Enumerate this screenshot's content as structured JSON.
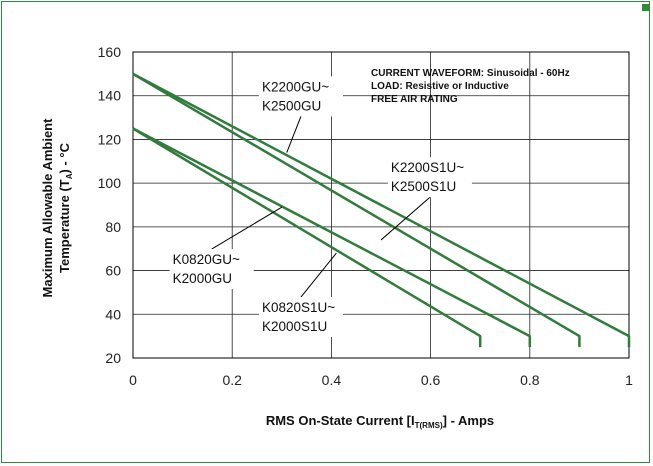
{
  "chart_data": {
    "type": "line",
    "xlabel": {
      "main": "RMS On-State Current [I",
      "sub": "T(RMS)",
      "end": "] - Amps"
    },
    "ylabel": {
      "line1": "Maximum Allowable Ambient",
      "line2_main": "Temperature (T",
      "line2_sub": "A",
      "line2_end": ") - °C"
    },
    "xlim": [
      0,
      1
    ],
    "ylim": [
      20,
      160
    ],
    "x_ticks": [
      "0",
      "0.2",
      "0.4",
      "0.6",
      "0.8",
      "1"
    ],
    "y_ticks": [
      "20",
      "40",
      "60",
      "80",
      "100",
      "120",
      "140",
      "160"
    ],
    "grid": true,
    "line_color": "#2e7d3a",
    "notes": [
      "CURRENT WAVEFORM: Sinusoidal - 60Hz",
      "LOAD: Resistive or Inductive",
      "FREE AIR RATING"
    ],
    "series": [
      {
        "x": [
          0,
          0.7,
          0.7
        ],
        "y": [
          125,
          30,
          25
        ]
      },
      {
        "x": [
          0,
          0.8,
          0.8
        ],
        "y": [
          125,
          30,
          25
        ]
      },
      {
        "x": [
          0,
          0.9,
          0.9
        ],
        "y": [
          150,
          30,
          25
        ]
      },
      {
        "x": [
          0,
          1.0,
          1.0
        ],
        "y": [
          150,
          30,
          25
        ]
      }
    ],
    "annotations": [
      {
        "lines": [
          "K2200GU~",
          "K2500GU"
        ],
        "label_x": 0.26,
        "label_y": 142,
        "point": [
          0.31,
          114
        ]
      },
      {
        "lines": [
          "K2200S1U~",
          "K2500S1U"
        ],
        "label_x": 0.52,
        "label_y": 105,
        "point": [
          0.5,
          74
        ]
      },
      {
        "lines": [
          "K0820GU~",
          "K2000GU"
        ],
        "label_x": 0.08,
        "label_y": 63,
        "point": [
          0.3,
          89
        ]
      },
      {
        "lines": [
          "K0820S1U~",
          "K2000S1U"
        ],
        "label_x": 0.26,
        "label_y": 41,
        "point": [
          0.41,
          68
        ]
      }
    ]
  }
}
